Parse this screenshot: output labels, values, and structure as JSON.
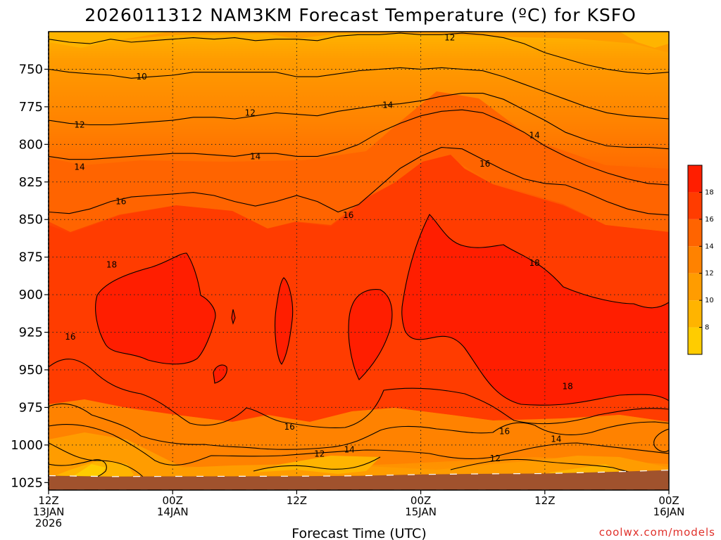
{
  "chart_data": {
    "type": "heatmap",
    "title": "2026011312 NAM3KM Forecast Temperature (ºC) for KSFO",
    "xlabel": "Forecast Time (UTC)",
    "ylabel": "",
    "credit": "coolwx.com/models",
    "y_axis": {
      "scale": "pressure (hPa), inverted",
      "range": [
        1030,
        725
      ],
      "ticks": [
        750,
        775,
        800,
        825,
        850,
        875,
        900,
        925,
        950,
        975,
        1000,
        1025
      ]
    },
    "x_axis": {
      "range_hours": [
        0,
        60
      ],
      "ticks": [
        {
          "hour": 0,
          "line1": "12Z",
          "line2": "13JAN",
          "line3": "2026"
        },
        {
          "hour": 12,
          "line1": "00Z",
          "line2": "14JAN",
          "line3": ""
        },
        {
          "hour": 24,
          "line1": "12Z",
          "line2": "",
          "line3": ""
        },
        {
          "hour": 36,
          "line1": "00Z",
          "line2": "15JAN",
          "line3": ""
        },
        {
          "hour": 48,
          "line1": "12Z",
          "line2": "",
          "line3": ""
        },
        {
          "hour": 60,
          "line1": "00Z",
          "line2": "16JAN",
          "line3": ""
        }
      ]
    },
    "grid": true,
    "colorbar": {
      "ticks": [
        8,
        10,
        12,
        14,
        16,
        18
      ],
      "bands": [
        {
          "from": 6,
          "to": 8,
          "color": "#ffcc00"
        },
        {
          "from": 8,
          "to": 10,
          "color": "#ffb400"
        },
        {
          "from": 10,
          "to": 12,
          "color": "#ff9c00"
        },
        {
          "from": 12,
          "to": 14,
          "color": "#ff8200"
        },
        {
          "from": 14,
          "to": 16,
          "color": "#ff6400"
        },
        {
          "from": 16,
          "to": 18,
          "color": "#ff3c00"
        },
        {
          "from": 18,
          "to": 20,
          "color": "#ff1e00"
        }
      ]
    },
    "ground_color": "#a0522d",
    "surface_pressure": [
      {
        "hour": 0,
        "hPa": 1020.4
      },
      {
        "hour": 6,
        "hPa": 1021.0
      },
      {
        "hour": 12,
        "hPa": 1020.9
      },
      {
        "hour": 24,
        "hPa": 1020.8
      },
      {
        "hour": 30,
        "hPa": 1020.5
      },
      {
        "hour": 36,
        "hPa": 1019.6
      },
      {
        "hour": 42,
        "hPa": 1019.2
      },
      {
        "hour": 48,
        "hPa": 1019.0
      },
      {
        "hour": 54,
        "hPa": 1018.0
      },
      {
        "hour": 60,
        "hPa": 1016.7
      }
    ],
    "contours": [
      {
        "level": 12,
        "points": [
          [
            0,
            730
          ],
          [
            2,
            732
          ],
          [
            4,
            733
          ],
          [
            6,
            730
          ],
          [
            8,
            732
          ],
          [
            10,
            731
          ],
          [
            12,
            730
          ],
          [
            14,
            729
          ],
          [
            16,
            730
          ],
          [
            18,
            729
          ],
          [
            20,
            731
          ],
          [
            22,
            730
          ],
          [
            24,
            730
          ],
          [
            26,
            731
          ],
          [
            28,
            728
          ],
          [
            30,
            727
          ],
          [
            32,
            727
          ],
          [
            34,
            726
          ],
          [
            36,
            727
          ],
          [
            38,
            727
          ],
          [
            40,
            726
          ],
          [
            42,
            727
          ],
          [
            44,
            729
          ],
          [
            46,
            733
          ],
          [
            48,
            739
          ],
          [
            50,
            743
          ],
          [
            52,
            747
          ],
          [
            54,
            750
          ],
          [
            56,
            752
          ],
          [
            58,
            753
          ],
          [
            60,
            752
          ]
        ]
      },
      {
        "level": 10,
        "points": [
          [
            0,
            750
          ],
          [
            2,
            752
          ],
          [
            4,
            753
          ],
          [
            6,
            754
          ],
          [
            8,
            756
          ],
          [
            10,
            755
          ],
          [
            12,
            754
          ],
          [
            14,
            752
          ],
          [
            16,
            752
          ],
          [
            18,
            752
          ],
          [
            20,
            752
          ],
          [
            22,
            752
          ],
          [
            24,
            755
          ],
          [
            26,
            755
          ],
          [
            28,
            753
          ],
          [
            30,
            751
          ],
          [
            32,
            750
          ],
          [
            34,
            749
          ],
          [
            36,
            750
          ],
          [
            38,
            749
          ],
          [
            40,
            750
          ],
          [
            42,
            751
          ],
          [
            44,
            755
          ],
          [
            46,
            760
          ],
          [
            48,
            765
          ],
          [
            50,
            770
          ],
          [
            52,
            775
          ],
          [
            54,
            779
          ],
          [
            56,
            781
          ],
          [
            58,
            782
          ],
          [
            60,
            783
          ]
        ]
      },
      {
        "level": 12,
        "points": [
          [
            0,
            784
          ],
          [
            2,
            786
          ],
          [
            4,
            787
          ],
          [
            6,
            787
          ],
          [
            8,
            786
          ],
          [
            10,
            785
          ],
          [
            12,
            784
          ],
          [
            14,
            782
          ],
          [
            16,
            782
          ],
          [
            18,
            783
          ],
          [
            20,
            781
          ],
          [
            22,
            779
          ],
          [
            24,
            780
          ],
          [
            26,
            781
          ],
          [
            28,
            778
          ],
          [
            30,
            776
          ],
          [
            32,
            774
          ],
          [
            34,
            773
          ],
          [
            36,
            771
          ],
          [
            38,
            768
          ],
          [
            40,
            766
          ],
          [
            42,
            766
          ],
          [
            44,
            770
          ],
          [
            46,
            777
          ],
          [
            48,
            784
          ],
          [
            50,
            792
          ],
          [
            52,
            797
          ],
          [
            54,
            801
          ],
          [
            56,
            802
          ],
          [
            58,
            802
          ],
          [
            60,
            803
          ]
        ]
      },
      {
        "level": 14,
        "points": [
          [
            0,
            808
          ],
          [
            2,
            810
          ],
          [
            4,
            810
          ],
          [
            6,
            809
          ],
          [
            8,
            808
          ],
          [
            10,
            807
          ],
          [
            12,
            806
          ],
          [
            14,
            806
          ],
          [
            16,
            807
          ],
          [
            18,
            808
          ],
          [
            20,
            806
          ],
          [
            22,
            806
          ],
          [
            24,
            808
          ],
          [
            26,
            808
          ],
          [
            28,
            805
          ],
          [
            30,
            800
          ],
          [
            32,
            792
          ],
          [
            34,
            786
          ],
          [
            36,
            781
          ],
          [
            38,
            778
          ],
          [
            40,
            777
          ],
          [
            42,
            779
          ],
          [
            44,
            785
          ],
          [
            46,
            792
          ],
          [
            48,
            801
          ],
          [
            50,
            808
          ],
          [
            52,
            814
          ],
          [
            54,
            819
          ],
          [
            56,
            823
          ],
          [
            58,
            826
          ],
          [
            60,
            827
          ]
        ]
      },
      {
        "level": 16,
        "points": [
          [
            0,
            845
          ],
          [
            2,
            846
          ],
          [
            4,
            843
          ],
          [
            6,
            838
          ],
          [
            8,
            835
          ],
          [
            10,
            834
          ],
          [
            12,
            833
          ],
          [
            14,
            832
          ],
          [
            16,
            834
          ],
          [
            18,
            838
          ],
          [
            20,
            841
          ],
          [
            22,
            838
          ],
          [
            24,
            834
          ],
          [
            26,
            838
          ],
          [
            28,
            845
          ],
          [
            30,
            840
          ],
          [
            32,
            828
          ],
          [
            34,
            816
          ],
          [
            36,
            808
          ],
          [
            38,
            802
          ],
          [
            40,
            803
          ],
          [
            42,
            810
          ],
          [
            44,
            817
          ],
          [
            46,
            823
          ],
          [
            48,
            826
          ],
          [
            50,
            827
          ],
          [
            52,
            832
          ],
          [
            54,
            838
          ],
          [
            56,
            843
          ],
          [
            58,
            846
          ],
          [
            60,
            847
          ]
        ]
      }
    ],
    "contour_labels": [
      {
        "value": "12",
        "hour": 38.8,
        "hPa": 729
      },
      {
        "value": "10",
        "hour": 9.0,
        "hPa": 755
      },
      {
        "value": "12",
        "hour": 19.5,
        "hPa": 779
      },
      {
        "value": "14",
        "hour": 32.8,
        "hPa": 774
      },
      {
        "value": "12",
        "hour": 3.0,
        "hPa": 787
      },
      {
        "value": "14",
        "hour": 3.0,
        "hPa": 815
      },
      {
        "value": "14",
        "hour": 20.0,
        "hPa": 808
      },
      {
        "value": "16",
        "hour": 42.2,
        "hPa": 813
      },
      {
        "value": "14",
        "hour": 47.0,
        "hPa": 794
      },
      {
        "value": "16",
        "hour": 7.0,
        "hPa": 838
      },
      {
        "value": "16",
        "hour": 29.0,
        "hPa": 847
      },
      {
        "value": "18",
        "hour": 6.1,
        "hPa": 880
      },
      {
        "value": "16",
        "hour": 2.1,
        "hPa": 928
      },
      {
        "value": "18",
        "hour": 47.0,
        "hPa": 879
      },
      {
        "value": "18",
        "hour": 50.2,
        "hPa": 961
      },
      {
        "value": "16",
        "hour": 23.3,
        "hPa": 988
      },
      {
        "value": "16",
        "hour": 44.1,
        "hPa": 991
      },
      {
        "value": "14",
        "hour": 29.1,
        "hPa": 1003
      },
      {
        "value": "12",
        "hour": 26.2,
        "hPa": 1006
      },
      {
        "value": "14",
        "hour": 49.1,
        "hPa": 996
      },
      {
        "value": "12",
        "hour": 43.2,
        "hPa": 1009
      }
    ]
  }
}
